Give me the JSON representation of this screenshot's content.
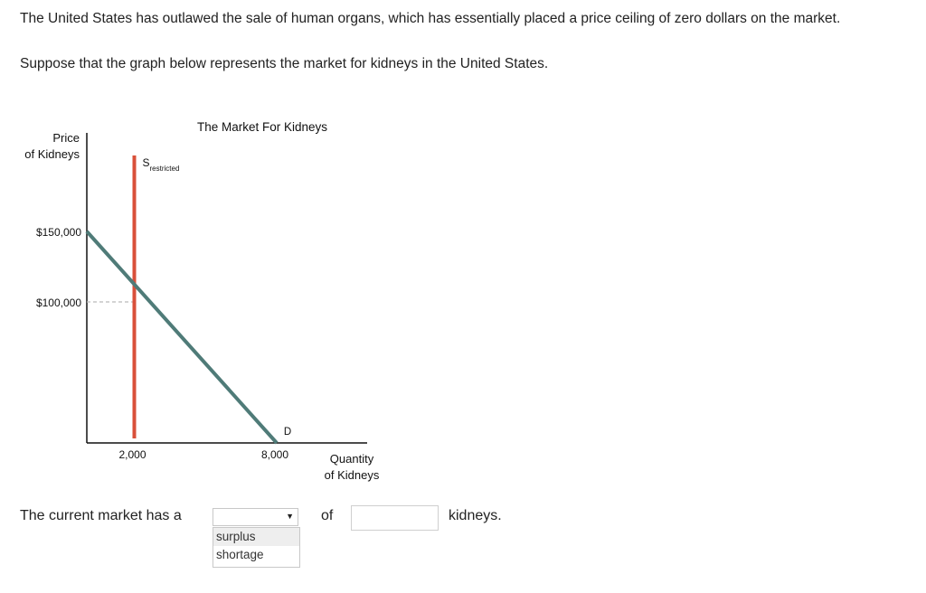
{
  "question": {
    "intro": "The United States has outlawed the sale of human organs, which has essentially placed a price ceiling of zero dollars on the market.",
    "prompt": "Suppose that the graph below represents the market for kidneys in the United States."
  },
  "answer": {
    "lead": "The current market has a",
    "options": [
      "surplus",
      "shortage"
    ],
    "highlighted": "surplus",
    "of": "of",
    "quantity_value": "",
    "unit": "kidneys."
  },
  "chart_data": {
    "type": "line",
    "title": "The Market For Kidneys",
    "ylabel": [
      "Price",
      "of Kidneys"
    ],
    "xlabel": [
      "Quantity",
      "of Kidneys"
    ],
    "xlim": [
      0,
      8000
    ],
    "ylim": [
      0,
      150000
    ],
    "y_ticks": [
      {
        "value": 150000,
        "label": "$150,000"
      },
      {
        "value": 100000,
        "label": "$100,000"
      }
    ],
    "x_ticks": [
      {
        "value": 2000,
        "label": "2,000"
      },
      {
        "value": 8000,
        "label": "8,000"
      }
    ],
    "series": [
      {
        "name": "D",
        "color": "#4f7b78",
        "points": [
          [
            0,
            150000
          ],
          [
            8000,
            0
          ]
        ]
      },
      {
        "name": "S",
        "subscript": "restricted",
        "color": "#d9503a",
        "points": [
          [
            2000,
            0
          ],
          [
            2000,
            200000
          ]
        ]
      }
    ],
    "reference_line": {
      "from": [
        0,
        100000
      ],
      "to": [
        2000,
        100000
      ],
      "style": "dashed",
      "color": "#bbbbbb"
    }
  }
}
